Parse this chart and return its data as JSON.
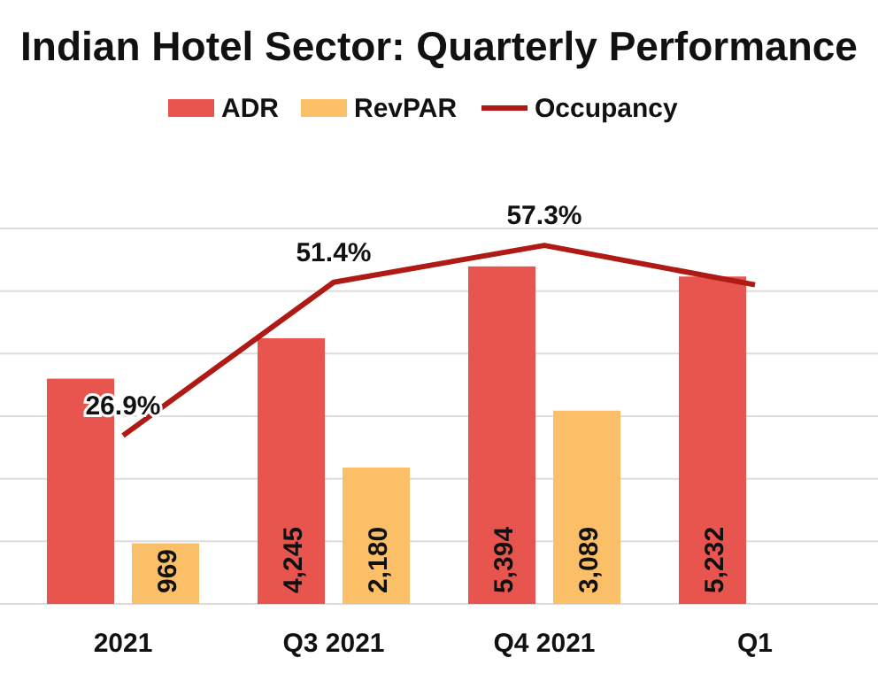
{
  "chart_data": {
    "type": "bar",
    "title": "Indian Hotel Sector: Quarterly Performance",
    "categories": [
      "2021",
      "Q3 2021",
      "Q4 2021",
      "Q1"
    ],
    "series": [
      {
        "name": "ADR",
        "color": "#e8554e",
        "values": [
          3600,
          4245,
          5394,
          5232
        ],
        "value_labels": [
          null,
          "4,245",
          "5,394",
          "5,232"
        ]
      },
      {
        "name": "RevPAR",
        "color": "#fbbf68",
        "values": [
          969,
          2180,
          3089,
          null
        ],
        "value_labels": [
          "969",
          "2,180",
          "3,089",
          null
        ]
      },
      {
        "name": "Occupancy",
        "type": "line",
        "axis": "y2",
        "color": "#b01a15",
        "values": [
          26.9,
          51.4,
          57.3,
          51
        ],
        "value_labels": [
          "26.9%",
          "51.4%",
          "57.3%",
          null
        ]
      }
    ],
    "ylim": [
      0,
      6000
    ],
    "yticks": [
      {
        "value": 0,
        "label": null
      },
      {
        "value": 1000,
        "label": null
      },
      {
        "value": 2000,
        "label": null
      },
      {
        "value": 3000,
        "label": null
      },
      {
        "value": 4000,
        "label": null
      },
      {
        "value": 5000,
        "label": null
      },
      {
        "value": 6000,
        "label": null
      }
    ],
    "y2lim": [
      0,
      60
    ],
    "grid": "y",
    "legend": "top",
    "tick_labels": "x"
  }
}
